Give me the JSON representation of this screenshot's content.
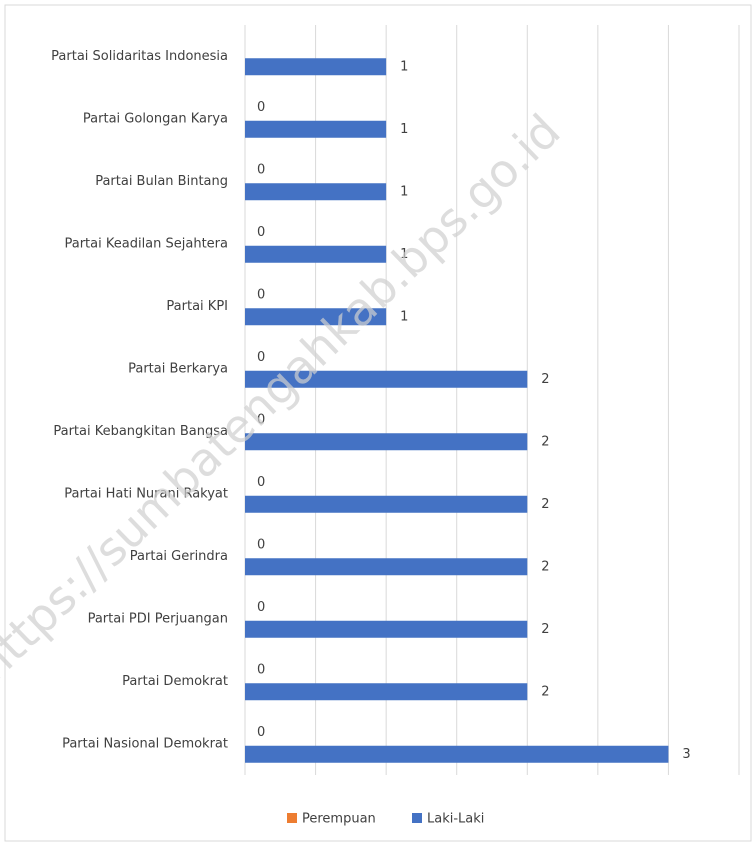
{
  "chart_data": {
    "type": "barh",
    "watermark": "https://sumbatengahkab.bps.go.id",
    "categories": [
      "Partai Solidaritas Indonesia",
      "Partai Golongan Karya",
      "Partai Bulan Bintang",
      "Partai Keadilan Sejahtera",
      "Partai KPI",
      "Partai Berkarya",
      "Partai Kebangkitan Bangsa",
      "Partai Hati Nurani Rakyat",
      "Partai Gerindra",
      "Partai PDI Perjuangan",
      "Partai Demokrat",
      "Partai Nasional Demokrat"
    ],
    "series": [
      {
        "name": "Perempuan",
        "color": "#ed7d31",
        "values": [
          null,
          0,
          0,
          0,
          0,
          0,
          0,
          0,
          0,
          0,
          0,
          0
        ]
      },
      {
        "name": "Laki-Laki",
        "color": "#4472c4",
        "values": [
          1,
          1,
          1,
          1,
          1,
          2,
          2,
          2,
          2,
          2,
          2,
          3
        ]
      }
    ],
    "xlim": [
      0,
      3.5
    ],
    "xticks": [
      0,
      0.5,
      1,
      1.5,
      2,
      2.5,
      3,
      3.5
    ],
    "grid": true,
    "legend": "bottom"
  }
}
